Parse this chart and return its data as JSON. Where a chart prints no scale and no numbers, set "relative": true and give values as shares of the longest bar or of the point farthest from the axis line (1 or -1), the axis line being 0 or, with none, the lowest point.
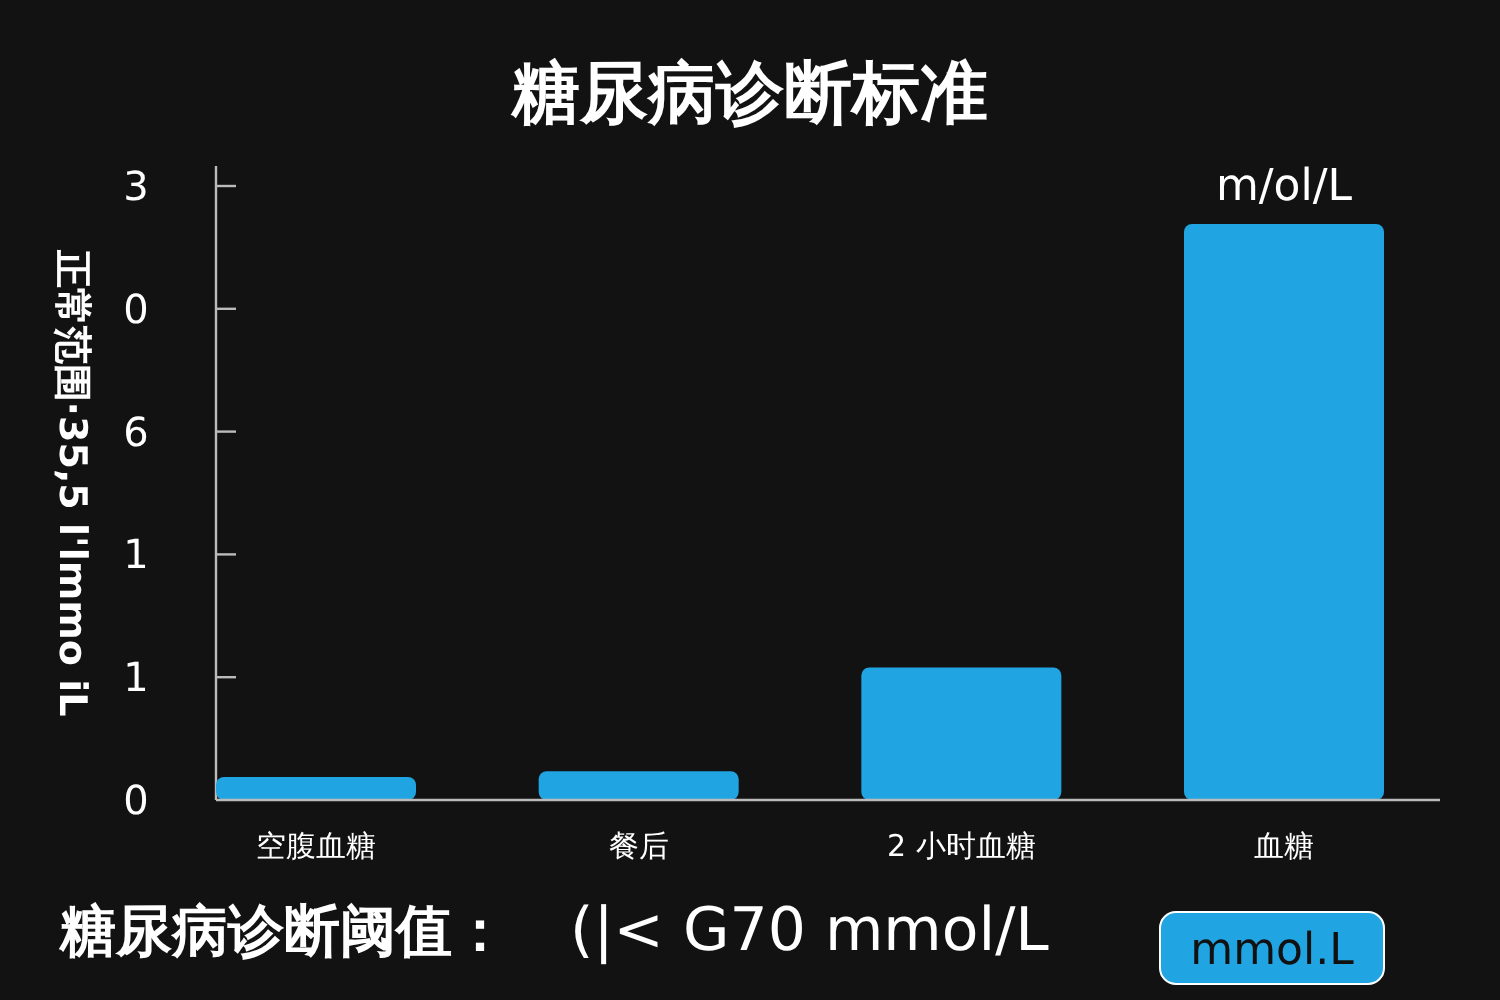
{
  "chart_data": {
    "type": "bar",
    "title": "糖尿病诊断标准",
    "ylabel": "正常范围·35,5 l'lmmo iL",
    "categories": [
      "空腹血糖",
      "餐后",
      "2 小时血糖",
      "血糖"
    ],
    "values": [
      0.04,
      0.05,
      0.23,
      1.0
    ],
    "color": "#20a4e2",
    "relative": true,
    "annotations": [
      {
        "text": "m/ol/L",
        "x": "血糖",
        "y": 1.0
      },
      "糖尿病诊断阈值：",
      "(|< G70  mmol/L",
      "mmol.L",
      "0",
      "1",
      "1",
      "6",
      "0",
      "3"
    ]
  }
}
